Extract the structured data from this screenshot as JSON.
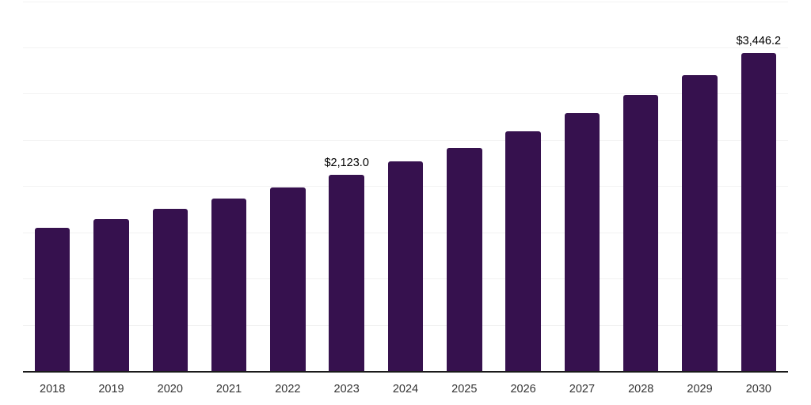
{
  "chart_data": {
    "type": "bar",
    "title": "",
    "xlabel": "",
    "ylabel": "",
    "categories": [
      "2018",
      "2019",
      "2020",
      "2021",
      "2022",
      "2023",
      "2024",
      "2025",
      "2026",
      "2027",
      "2028",
      "2029",
      "2030"
    ],
    "values": [
      1555,
      1645,
      1760,
      1870,
      1990,
      2123.0,
      2270,
      2420,
      2595,
      2790,
      2990,
      3205,
      3446.2
    ],
    "data_labels": [
      "",
      "",
      "",
      "",
      "",
      "$2,123.0",
      "",
      "",
      "",
      "",
      "",
      "",
      "$3,446.2"
    ],
    "ylim": [
      0,
      4000
    ],
    "gridline_step": 500,
    "grid": true,
    "legend": "none",
    "colors": {
      "bar": "#36114E",
      "gridline": "#F2F2F2",
      "axis_line": "#1A1A1A",
      "tick_label": "#333333",
      "data_label": "#000000",
      "background": "#FFFFFF"
    }
  }
}
